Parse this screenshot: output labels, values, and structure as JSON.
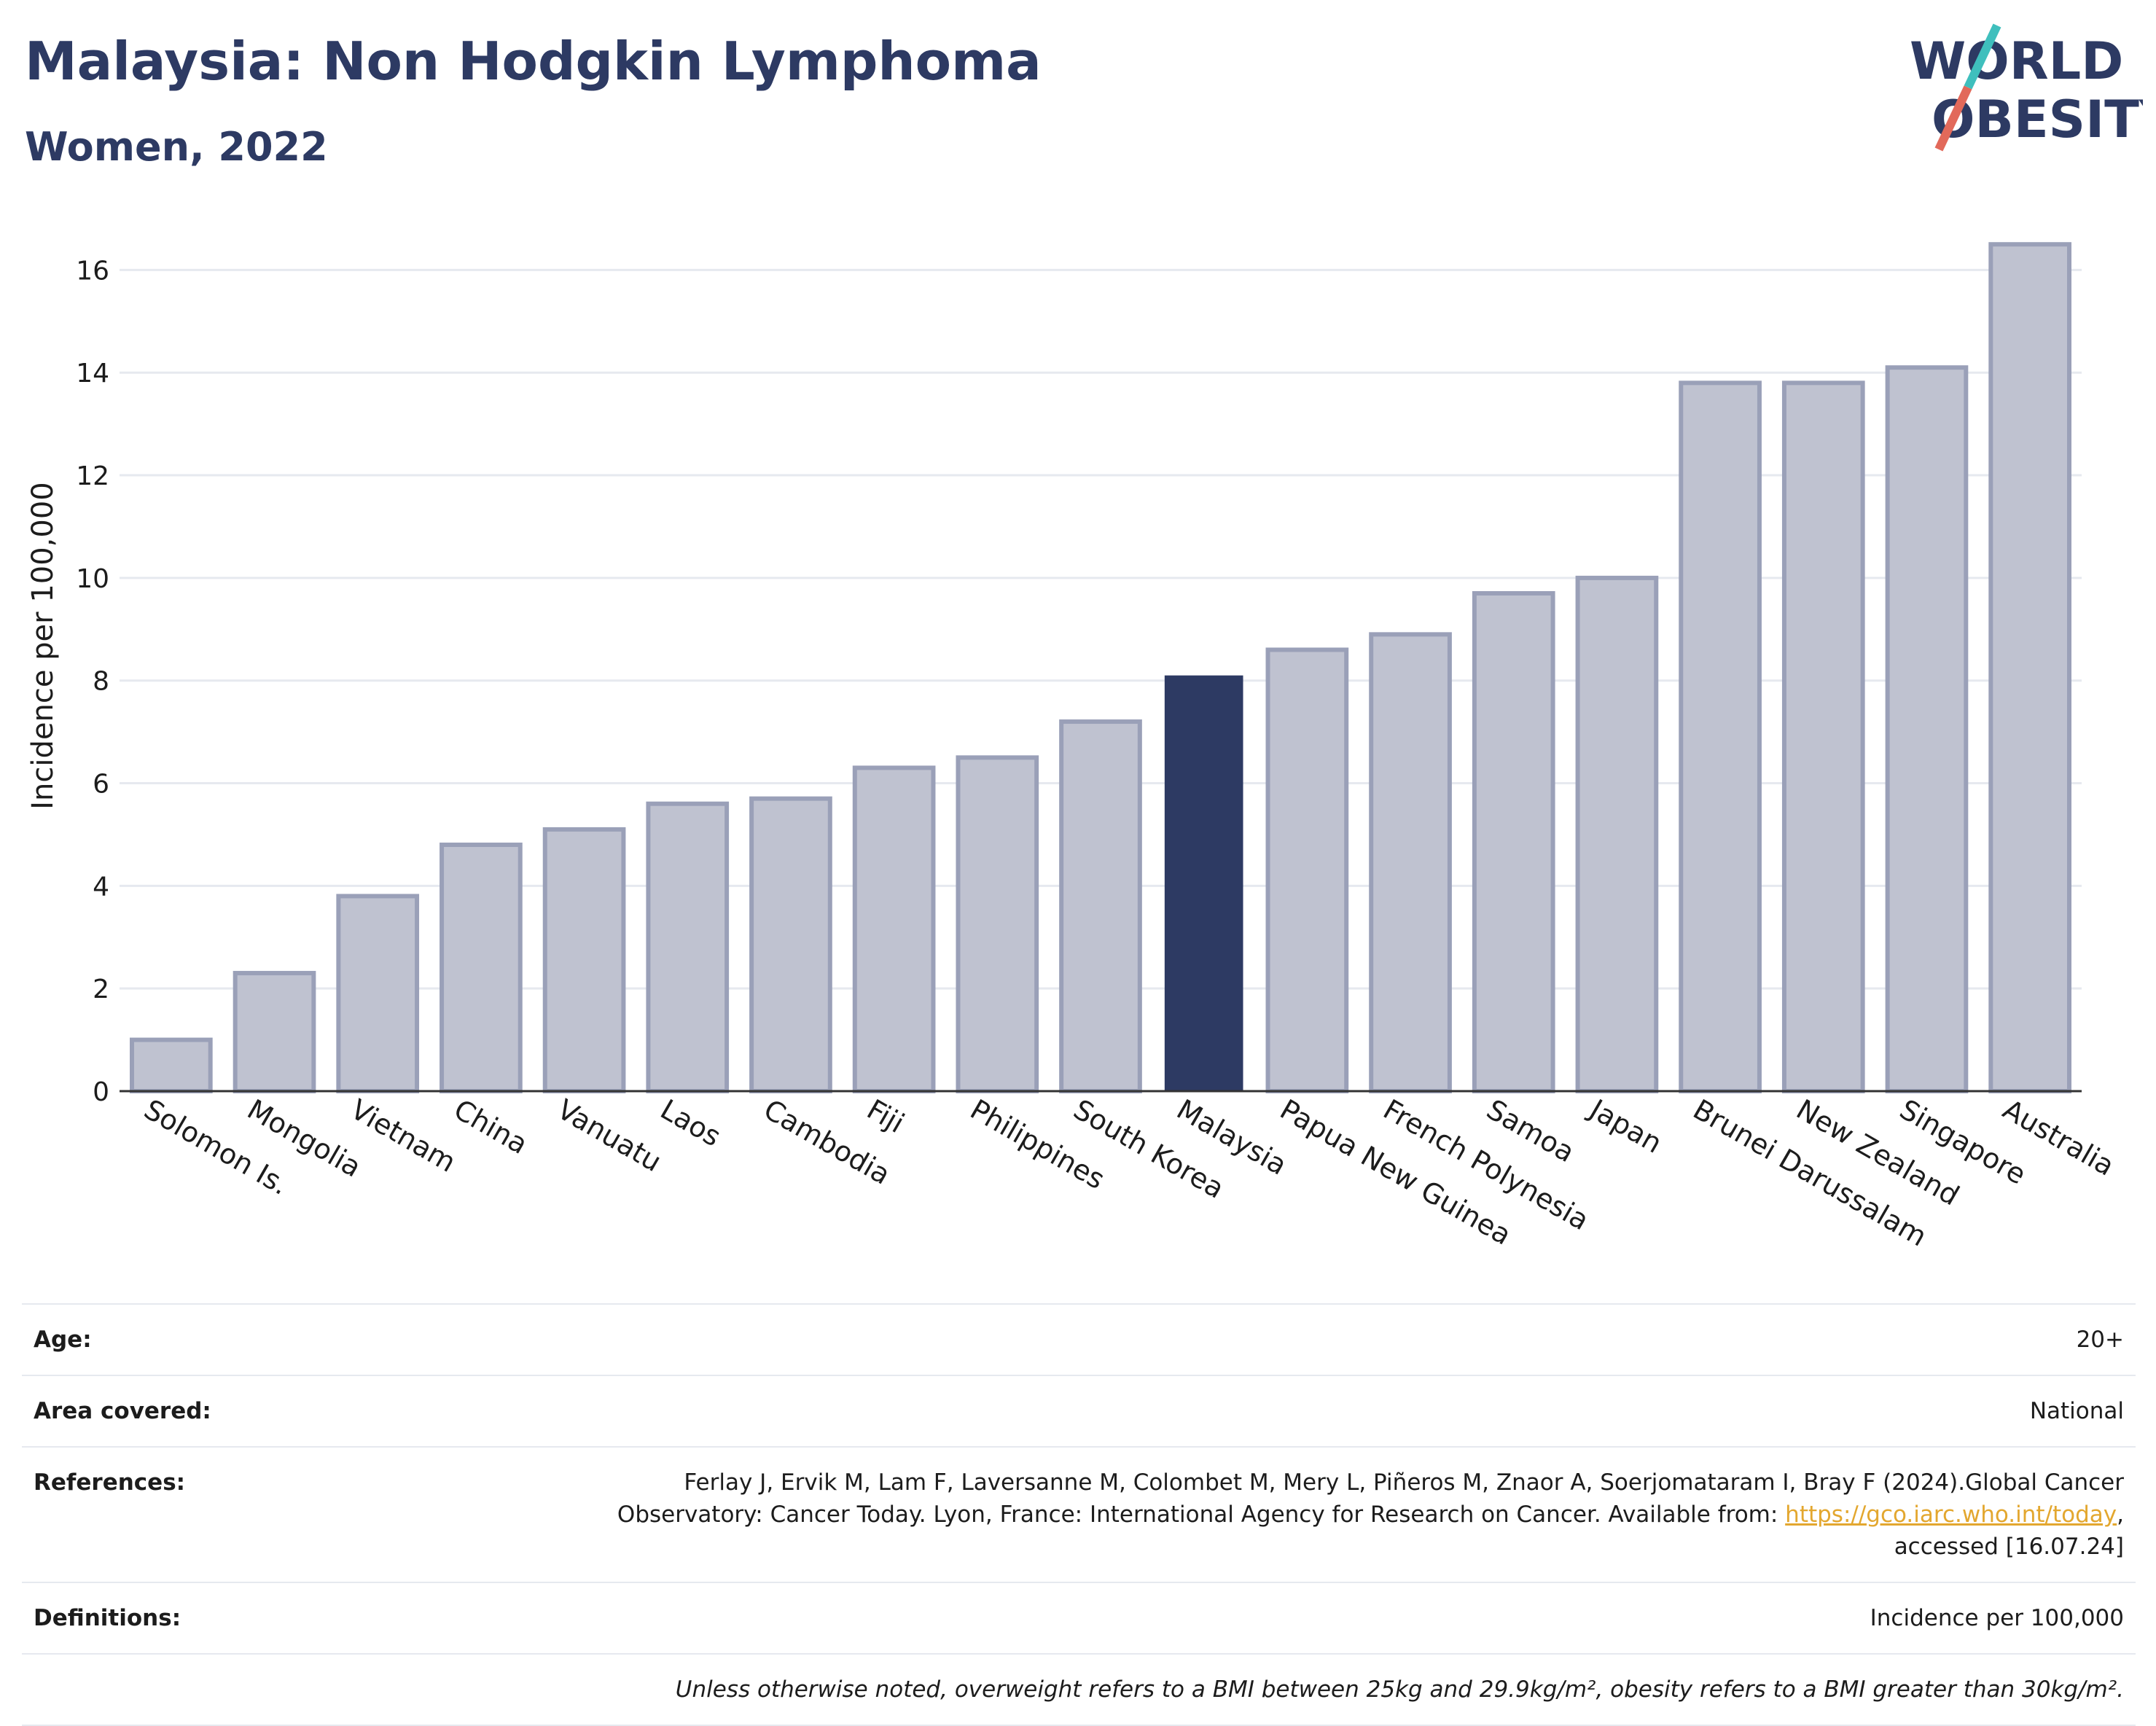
{
  "header": {
    "title": "Malaysia: Non Hodgkin Lymphoma",
    "subtitle": "Women, 2022"
  },
  "logo": {
    "line1": "WORLD",
    "line2": "OBESITY",
    "icon": "world-obesity-logo"
  },
  "colors": {
    "bar": "#bfc2d0",
    "bar_border": "#9aa0b8",
    "highlight": "#2d3a63",
    "grid": "#e6e9ef",
    "axis": "#333333"
  },
  "chart_data": {
    "type": "bar",
    "categories": [
      "Solomon Is.",
      "Mongolia",
      "Vietnam",
      "China",
      "Vanuatu",
      "Laos",
      "Cambodia",
      "Fiji",
      "Philippines",
      "South Korea",
      "Malaysia",
      "Papua New Guinea",
      "French Polynesia",
      "Samoa",
      "Japan",
      "Brunei Darussalam",
      "New Zealand",
      "Singapore",
      "Australia"
    ],
    "values": [
      1.0,
      2.3,
      3.8,
      4.8,
      5.1,
      5.6,
      5.7,
      6.3,
      6.5,
      7.2,
      8.1,
      8.6,
      8.9,
      9.7,
      10.0,
      13.8,
      13.8,
      14.1,
      16.5
    ],
    "highlight": "Malaysia",
    "title": "Malaysia: Non Hodgkin Lymphoma",
    "subtitle": "Women, 2022",
    "xlabel": "",
    "ylabel": "Incidence per 100,000",
    "ylim": [
      0,
      17
    ],
    "yticks": [
      0,
      2,
      4,
      6,
      8,
      10,
      12,
      14,
      16
    ],
    "grid": true,
    "legend": "none"
  },
  "info": {
    "age_label": "Age:",
    "age_value": "20+",
    "area_label": "Area covered:",
    "area_value": "National",
    "references_label": "References:",
    "references_line1": "Ferlay J, Ervik M, Lam F, Laversanne M, Colombet M, Mery L, Piñeros M, Znaor A, Soerjomataram I, Bray F (2024).Global Cancer",
    "references_line2": "Observatory: Cancer Today. Lyon, France: International Agency for Research on Cancer. Available from:",
    "references_link": "https://gco.iarc.who.int/today",
    "references_line3": "accessed [16.07.24]",
    "definitions_label": "Definitions:",
    "definitions_value": "Incidence per 100,000",
    "note": "Unless otherwise noted, overweight refers to a BMI between 25kg and 29.9kg/m², obesity refers to a BMI greater than 30kg/m²."
  }
}
